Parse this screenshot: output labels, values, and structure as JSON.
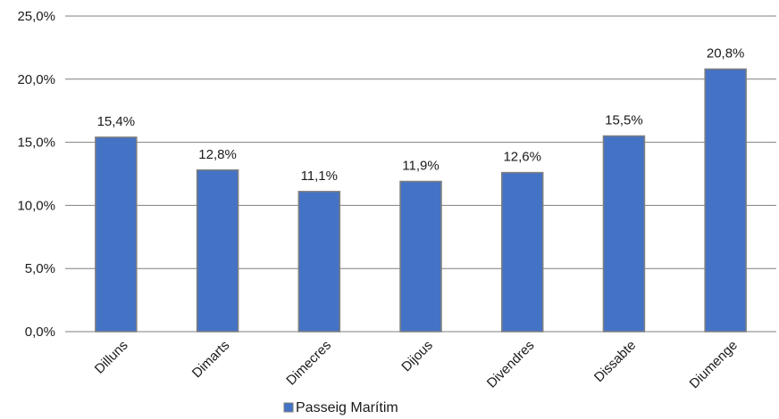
{
  "chart_data": {
    "type": "bar",
    "categories": [
      "Dilluns",
      "Dimarts",
      "Dimecres",
      "Dijous",
      "Divendres",
      "Dissabte",
      "Diumenge"
    ],
    "series": [
      {
        "name": "Passeig Marítim",
        "values": [
          15.4,
          12.8,
          11.1,
          11.9,
          12.6,
          15.5,
          20.8
        ],
        "labels": [
          "15,4%",
          "12,8%",
          "11,1%",
          "11,9%",
          "12,6%",
          "15,5%",
          "20,8%"
        ],
        "color": "#4472C4"
      }
    ],
    "ylim": [
      0,
      25
    ],
    "yticks": [
      {
        "value": 0,
        "label": "0,0%"
      },
      {
        "value": 5,
        "label": "5,0%"
      },
      {
        "value": 10,
        "label": "10,0%"
      },
      {
        "value": 15,
        "label": "15,0%"
      },
      {
        "value": 20,
        "label": "20,0%"
      },
      {
        "value": 25,
        "label": "25,0%"
      }
    ],
    "grid": true,
    "legend_position": "bottom-center",
    "bar_edge_color": "#7f7f7f",
    "grid_color": "#7f7f7f"
  }
}
